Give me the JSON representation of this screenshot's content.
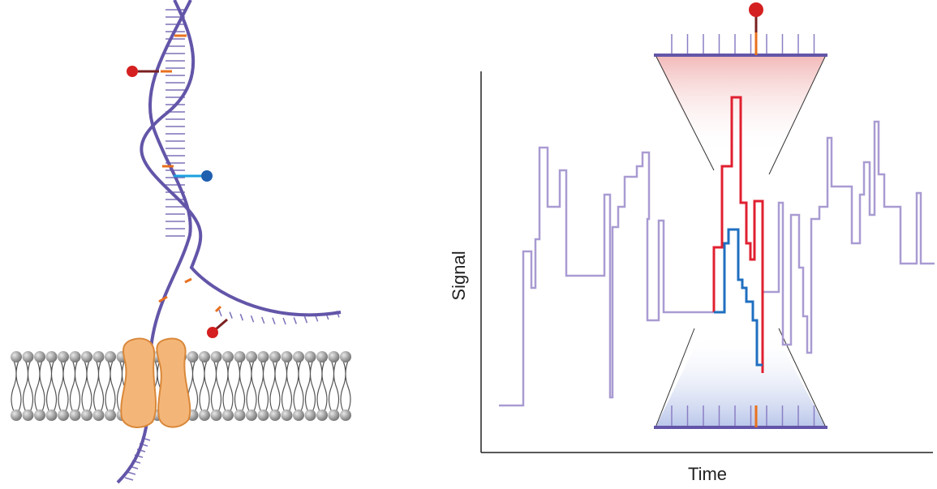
{
  "axes": {
    "y_label": "Signal",
    "x_label": "Time"
  }
}
